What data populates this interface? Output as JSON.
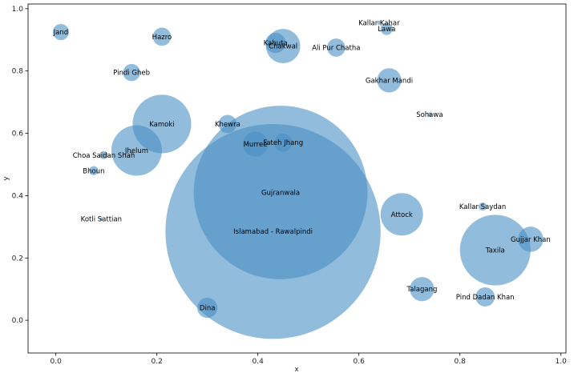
{
  "chart_data": {
    "type": "scatter",
    "title": "",
    "xlabel": "x",
    "ylabel": "y",
    "xlim": [
      -0.055,
      1.01
    ],
    "ylim": [
      -0.105,
      1.015
    ],
    "xticks": [
      "0.0",
      "0.2",
      "0.4",
      "0.6",
      "0.8",
      "1.0"
    ],
    "yticks": [
      "0.0",
      "0.2",
      "0.4",
      "0.6",
      "0.8",
      "1.0"
    ],
    "grid": false,
    "bubble_color": "#4a90c4",
    "bubble_alpha": 0.6,
    "points": [
      {
        "label": "Jand",
        "x": 0.01,
        "y": 0.925,
        "r": 0.016
      },
      {
        "label": "Hazro",
        "x": 0.21,
        "y": 0.91,
        "r": 0.018
      },
      {
        "label": "Kallar Kahar",
        "x": 0.64,
        "y": 0.955,
        "r": 0.004
      },
      {
        "label": "Lawa",
        "x": 0.655,
        "y": 0.935,
        "r": 0.012
      },
      {
        "label": "Kahuta",
        "x": 0.435,
        "y": 0.89,
        "r": 0.02
      },
      {
        "label": "Chakwal",
        "x": 0.45,
        "y": 0.88,
        "r": 0.034
      },
      {
        "label": "Ali Pur Chatha",
        "x": 0.555,
        "y": 0.875,
        "r": 0.018
      },
      {
        "label": "Pindi Gheb",
        "x": 0.15,
        "y": 0.795,
        "r": 0.017
      },
      {
        "label": "Gakhar Mandi",
        "x": 0.66,
        "y": 0.77,
        "r": 0.024
      },
      {
        "label": "Sohawa",
        "x": 0.74,
        "y": 0.66,
        "r": 0.004
      },
      {
        "label": "Kamoki",
        "x": 0.21,
        "y": 0.63,
        "r": 0.058
      },
      {
        "label": "Khewra",
        "x": 0.34,
        "y": 0.63,
        "r": 0.018
      },
      {
        "label": "Murree",
        "x": 0.395,
        "y": 0.565,
        "r": 0.025
      },
      {
        "label": "Fateh Jhang",
        "x": 0.45,
        "y": 0.57,
        "r": 0.018
      },
      {
        "label": "Jhelum",
        "x": 0.16,
        "y": 0.545,
        "r": 0.05
      },
      {
        "label": "Choa Saidan Shah",
        "x": 0.095,
        "y": 0.53,
        "r": 0.008
      },
      {
        "label": "Bhoun",
        "x": 0.075,
        "y": 0.48,
        "r": 0.009
      },
      {
        "label": "Gujranwala",
        "x": 0.445,
        "y": 0.41,
        "r": 0.172
      },
      {
        "label": "Kotli Sattian",
        "x": 0.09,
        "y": 0.325,
        "r": 0.002
      },
      {
        "label": "Kallar Saydan",
        "x": 0.845,
        "y": 0.365,
        "r": 0.008
      },
      {
        "label": "Attock",
        "x": 0.685,
        "y": 0.34,
        "r": 0.042
      },
      {
        "label": "Islamabad - Rawalpindi",
        "x": 0.43,
        "y": 0.285,
        "r": 0.213
      },
      {
        "label": "Gujjar Khan",
        "x": 0.94,
        "y": 0.26,
        "r": 0.025
      },
      {
        "label": "Taxila",
        "x": 0.87,
        "y": 0.225,
        "r": 0.07
      },
      {
        "label": "Talagang",
        "x": 0.725,
        "y": 0.1,
        "r": 0.024
      },
      {
        "label": "Pind Dadan Khan",
        "x": 0.85,
        "y": 0.075,
        "r": 0.019
      },
      {
        "label": "Dina",
        "x": 0.3,
        "y": 0.04,
        "r": 0.02
      }
    ]
  }
}
